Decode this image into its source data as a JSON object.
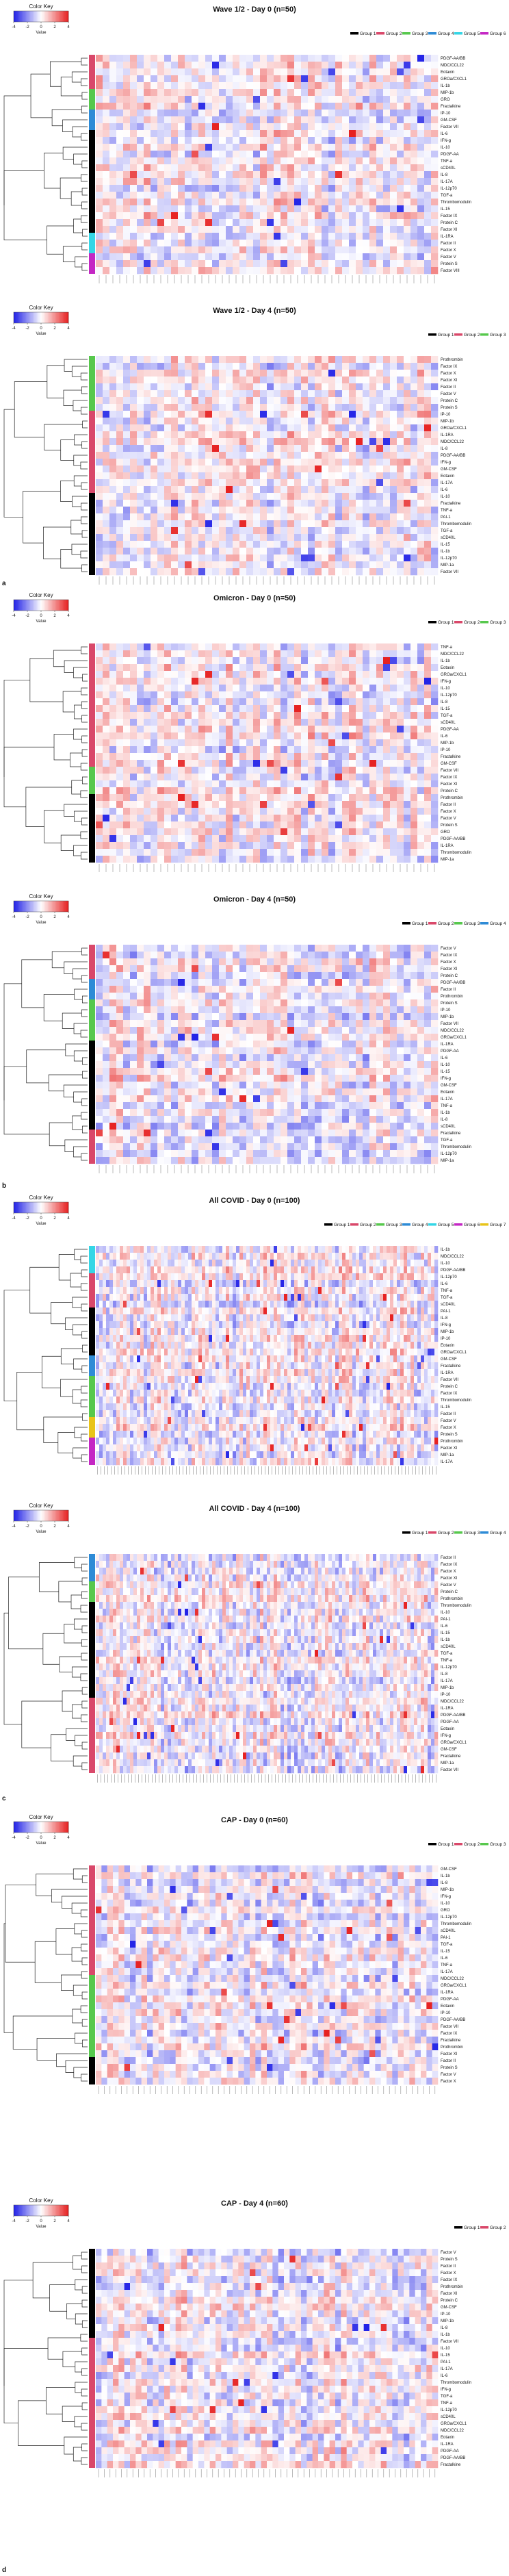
{
  "figure": {
    "panel_letters": [
      "a",
      "b",
      "c",
      "d"
    ],
    "color_key": {
      "title": "Color Key",
      "xlabel": "Value",
      "ticks": [
        "-4",
        "-2",
        "0",
        "2",
        "4"
      ],
      "range": [
        -4,
        4
      ],
      "colors": {
        "low": "#1f1fe6",
        "mid": "#ffffff",
        "high": "#e61f1f"
      }
    }
  },
  "group_colors": {
    "Group 1": "#000000",
    "Group 2": "#d9486a",
    "Group 3": "#57c84d",
    "Group 4": "#2e8bd6",
    "Group 5": "#34d6e6",
    "Group 6": "#c427c4",
    "Group 7": "#e8c41a"
  },
  "chart_data": [
    {
      "type": "heatmap",
      "title": "Wave 1/2 - Day 0 (n=50)",
      "panel": "a",
      "legend": [
        "Group 1",
        "Group 2",
        "Group 3",
        "Group 4",
        "Group 5",
        "Group 6"
      ],
      "row_groups": [
        {
          "group": "Group 2",
          "rows": 5
        },
        {
          "group": "Group 3",
          "rows": 3
        },
        {
          "group": "Group 4",
          "rows": 3
        },
        {
          "group": "Group 1",
          "rows": 15
        },
        {
          "group": "Group 5",
          "rows": 3
        },
        {
          "group": "Group 6",
          "rows": 3
        }
      ],
      "row_labels": [
        "PDGF-AA/BB",
        "MDC/CCL22",
        "Eotaxin",
        "GROa/CXCL1",
        "IL-1b",
        "MIP-1b",
        "GRO",
        "Fractalkine",
        "IP-10",
        "GM-CSF",
        "Factor VII",
        "IL-6",
        "IFN-g",
        "IL-10",
        "PDGF-AA",
        "TNF-a",
        "sCD40L",
        "IL-8",
        "IL-17A",
        "IL-12p70",
        "TGF-a",
        "Thrombomodulin",
        "IL-15",
        "Factor IX",
        "Protein C",
        "Factor XI",
        "IL-1RA",
        "Factor II",
        "Factor X",
        "Factor V",
        "Protein S",
        "Factor VIII"
      ],
      "n_samples": 50
    },
    {
      "type": "heatmap",
      "title": "Wave 1/2 - Day 4 (n=50)",
      "panel": "a",
      "legend": [
        "Group 1",
        "Group 2",
        "Group 3"
      ],
      "row_groups": [
        {
          "group": "Group 3",
          "rows": 8
        },
        {
          "group": "Group 2",
          "rows": 12
        },
        {
          "group": "Group 1",
          "rows": 12
        }
      ],
      "row_labels": [
        "Prothrombin",
        "Factor IX",
        "Factor X",
        "Factor XI",
        "Factor II",
        "Factor V",
        "Protein C",
        "Protein S",
        "IP-10",
        "MIP-1b",
        "GROa/CXCL1",
        "IL-1RA",
        "MDC/CCL22",
        "IL-8",
        "PDGF-AA/BB",
        "IFN-g",
        "GM-CSF",
        "Eotaxin",
        "IL-17A",
        "IL-6",
        "IL-10",
        "Fractalkine",
        "TNF-a",
        "PAI-1",
        "Thrombomodulin",
        "TGF-a",
        "sCD40L",
        "IL-15",
        "IL-1b",
        "IL-12p70",
        "MIP-1a",
        "Factor VII"
      ],
      "n_samples": 50
    },
    {
      "type": "heatmap",
      "title": "Omicron - Day 0 (n=50)",
      "panel": "b",
      "legend": [
        "Group 1",
        "Group 2",
        "Group 3"
      ],
      "row_groups": [
        {
          "group": "Group 2",
          "rows": 18
        },
        {
          "group": "Group 3",
          "rows": 4
        },
        {
          "group": "Group 1",
          "rows": 10
        }
      ],
      "row_labels": [
        "TNF-a",
        "MDC/CCL22",
        "IL-1b",
        "Eotaxin",
        "GROa/CXCL1",
        "IFN-g",
        "IL-10",
        "IL-12p70",
        "IL-8",
        "IL-15",
        "TGF-a",
        "sCD40L",
        "PDGF-AA",
        "IL-6",
        "MIP-1b",
        "IP-10",
        "Fractalkine",
        "GM-CSF",
        "Factor VII",
        "Factor IX",
        "Factor XI",
        "Protein C",
        "Prothrombin",
        "Factor II",
        "Factor X",
        "Factor V",
        "Protein S",
        "GRO",
        "PDGF-AA/BB",
        "IL-1RA",
        "Thrombomodulin",
        "MIP-1a"
      ],
      "n_samples": 50
    },
    {
      "type": "heatmap",
      "title": "Omicron - Day 4 (n=50)",
      "panel": "b",
      "legend": [
        "Group 1",
        "Group 2",
        "Group 3",
        "Group 4"
      ],
      "row_groups": [
        {
          "group": "Group 2",
          "rows": 5
        },
        {
          "group": "Group 4",
          "rows": 3
        },
        {
          "group": "Group 3",
          "rows": 6
        },
        {
          "group": "Group 1",
          "rows": 13
        },
        {
          "group": "Group 2",
          "rows": 5
        }
      ],
      "row_labels": [
        "Factor V",
        "Factor IX",
        "Factor X",
        "Factor XI",
        "Protein C",
        "PDGF-AA/BB",
        "Factor II",
        "Prothrombin",
        "Protein S",
        "IP-10",
        "MIP-1b",
        "Factor VII",
        "MDC/CCL22",
        "GROa/CXCL1",
        "IL-1RA",
        "PDGF-AA",
        "IL-6",
        "IL-10",
        "IL-15",
        "IFN-g",
        "GM-CSF",
        "Eotaxin",
        "IL-17A",
        "TNF-a",
        "IL-1b",
        "IL-8",
        "sCD40L",
        "Fractalkine",
        "TGF-a",
        "Thrombomodulin",
        "IL-12p70",
        "MIP-1a"
      ],
      "n_samples": 50
    },
    {
      "type": "heatmap",
      "title": "All COVID - Day 0 (n=100)",
      "panel": "c",
      "legend": [
        "Group 1",
        "Group 2",
        "Group 3",
        "Group 4",
        "Group 5",
        "Group 6",
        "Group 7"
      ],
      "row_groups": [
        {
          "group": "Group 5",
          "rows": 4
        },
        {
          "group": "Group 2",
          "rows": 5
        },
        {
          "group": "Group 1",
          "rows": 7
        },
        {
          "group": "Group 4",
          "rows": 3
        },
        {
          "group": "Group 3",
          "rows": 6
        },
        {
          "group": "Group 7",
          "rows": 3
        },
        {
          "group": "Group 6",
          "rows": 4
        }
      ],
      "row_labels": [
        "IL-1b",
        "MDC/CCL22",
        "IL-10",
        "PDGF-AA/BB",
        "IL-12p70",
        "IL-6",
        "TNF-a",
        "TGF-a",
        "sCD40L",
        "PAI-1",
        "IL-8",
        "IFN-g",
        "MIP-1b",
        "IP-10",
        "Eotaxin",
        "GROa/CXCL1",
        "GM-CSF",
        "Fractalkine",
        "IL-1RA",
        "Factor VII",
        "Protein C",
        "Factor IX",
        "Thrombomodulin",
        "IL-15",
        "Factor II",
        "Factor V",
        "Factor X",
        "Protein S",
        "Prothrombin",
        "Factor XI",
        "MIP-1a",
        "IL-17A"
      ],
      "n_samples": 100
    },
    {
      "type": "heatmap",
      "title": "All COVID - Day 4 (n=100)",
      "panel": "c",
      "legend": [
        "Group 1",
        "Group 2",
        "Group 3",
        "Group 4"
      ],
      "row_groups": [
        {
          "group": "Group 4",
          "rows": 4
        },
        {
          "group": "Group 3",
          "rows": 3
        },
        {
          "group": "Group 1",
          "rows": 14
        },
        {
          "group": "Group 2",
          "rows": 11
        }
      ],
      "row_labels": [
        "Factor II",
        "Factor IX",
        "Factor X",
        "Factor XI",
        "Factor V",
        "Protein C",
        "Prothrombin",
        "Thrombomodulin",
        "IL-10",
        "PAI-1",
        "IL-6",
        "IL-15",
        "IL-1b",
        "sCD40L",
        "TGF-a",
        "TNF-a",
        "IL-12p70",
        "IL-8",
        "IL-17A",
        "MIP-1b",
        "IP-10",
        "MDC/CCL22",
        "IL-1RA",
        "PDGF-AA/BB",
        "PDGF-AA",
        "Eotaxin",
        "IFN-g",
        "GROa/CXCL1",
        "GM-CSF",
        "Fractalkine",
        "MIP-1a",
        "Factor VII"
      ],
      "n_samples": 100
    },
    {
      "type": "heatmap",
      "title": "CAP - Day 0 (n=60)",
      "panel": "d",
      "legend": [
        "Group 1",
        "Group 2",
        "Group 3"
      ],
      "row_groups": [
        {
          "group": "Group 2",
          "rows": 16
        },
        {
          "group": "Group 3",
          "rows": 12
        },
        {
          "group": "Group 1",
          "rows": 4
        }
      ],
      "row_labels": [
        "GM-CSF",
        "IL-1b",
        "IL-8",
        "MIP-1b",
        "IFN-g",
        "IL-10",
        "GRO",
        "IL-12p70",
        "Thrombomodulin",
        "sCD40L",
        "PAI-1",
        "TGF-a",
        "IL-15",
        "IL-6",
        "TNF-a",
        "IL-17A",
        "MDC/CCL22",
        "GROa/CXCL1",
        "IL-1RA",
        "PDGF-AA",
        "Eotaxin",
        "IP-10",
        "PDGF-AA/BB",
        "Factor VII",
        "Factor IX",
        "Fractalkine",
        "Prothrombin",
        "Factor XI",
        "Factor II",
        "Protein S",
        "Factor V",
        "Factor X"
      ],
      "n_samples": 60
    },
    {
      "type": "heatmap",
      "title": "CAP - Day 4 (n=60)",
      "panel": "d",
      "legend": [
        "Group 1",
        "Group 2"
      ],
      "row_groups": [
        {
          "group": "Group 1",
          "rows": 13
        },
        {
          "group": "Group 2",
          "rows": 19
        }
      ],
      "row_labels": [
        "Factor V",
        "Protein S",
        "Factor II",
        "Factor X",
        "Factor IX",
        "Prothrombin",
        "Factor XI",
        "Protein C",
        "GM-CSF",
        "IP-10",
        "MIP-1b",
        "IL-8",
        "IL-1b",
        "Factor VII",
        "IL-10",
        "IL-15",
        "PAI-1",
        "IL-17A",
        "IL-6",
        "Thrombomodulin",
        "IFN-g",
        "TGF-a",
        "TNF-a",
        "IL-12p70",
        "sCD40L",
        "GROa/CXCL1",
        "MDC/CCL22",
        "Eotaxin",
        "IL-1RA",
        "PDGF-AA",
        "PDGF-AA/BB",
        "Fractalkine"
      ],
      "n_samples": 60
    }
  ]
}
